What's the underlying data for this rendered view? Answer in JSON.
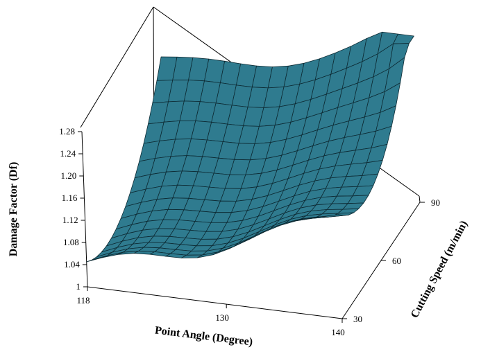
{
  "chart_data": {
    "type": "surface",
    "xlabel": "Point Angle (Degree)",
    "ylabel": "Cutting Speed (m/min)",
    "zlabel": "Damage Factor (Df)",
    "x_ticks": [
      "118",
      "130",
      "140"
    ],
    "y_ticks": [
      "30",
      "60",
      "90"
    ],
    "z_ticks": [
      "1",
      "1.04",
      "1.08",
      "1.12",
      "1.16",
      "1.20",
      "1.24",
      "1.28"
    ],
    "xlim": [
      118,
      140
    ],
    "ylim": [
      30,
      90
    ],
    "zlim": [
      1.0,
      1.28
    ],
    "surface_color": "#2f7b8f",
    "mesh_color": "#0d2a33",
    "x": [
      118,
      130,
      140
    ],
    "y": [
      30,
      60,
      90
    ],
    "z": [
      [
        1.045,
        1.105,
        1.195
      ],
      [
        1.04,
        1.095,
        1.15
      ],
      [
        1.205,
        1.225,
        1.28
      ]
    ]
  }
}
